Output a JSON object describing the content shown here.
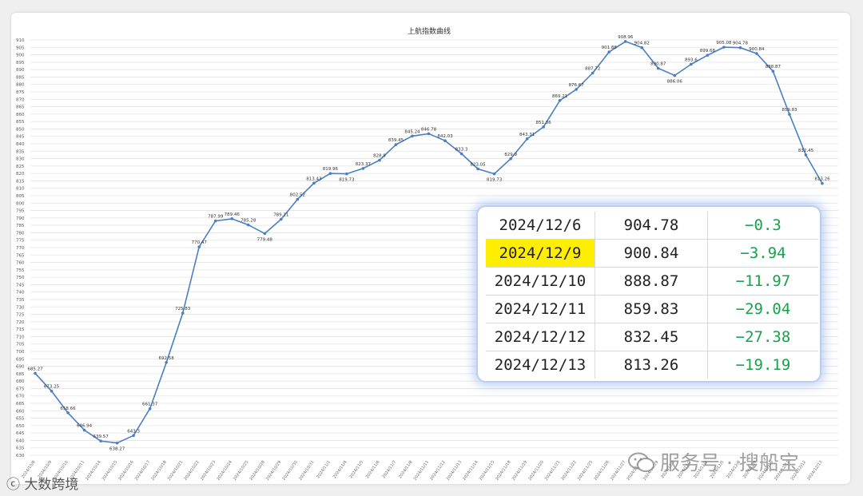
{
  "chart_data": {
    "type": "line",
    "title": "上航指数曲线",
    "ylim": [
      630,
      910
    ],
    "ytick_step": 5,
    "grid": true,
    "line_color": "#4a7fc1",
    "x": [
      "2024/10/8",
      "2024/10/9",
      "2024/10/10",
      "2024/10/11",
      "2024/10/14",
      "2024/10/15",
      "2024/10/16",
      "2024/10/17",
      "2024/10/18",
      "2024/10/21",
      "2024/10/22",
      "2024/10/23",
      "2024/10/24",
      "2024/10/25",
      "2024/10/28",
      "2024/10/29",
      "2024/10/30",
      "2024/10/31",
      "2024/11/1",
      "2024/11/4",
      "2024/11/5",
      "2024/11/6",
      "2024/11/7",
      "2024/11/8",
      "2024/11/11",
      "2024/11/12",
      "2024/11/13",
      "2024/11/14",
      "2024/11/15",
      "2024/11/18",
      "2024/11/19",
      "2024/11/20",
      "2024/11/21",
      "2024/11/22",
      "2024/11/25",
      "2024/11/26",
      "2024/11/27",
      "2024/11/28",
      "2024/11/29",
      "2024/12/2",
      "2024/12/3",
      "2024/12/4",
      "2024/12/5",
      "2024/12/6",
      "2024/12/9",
      "2024/12/10",
      "2024/12/11",
      "2024/12/12",
      "2024/12/13"
    ],
    "values": [
      685.27,
      673.25,
      658.66,
      646.94,
      639.57,
      638.27,
      643.3,
      661.37,
      692.58,
      725.83,
      770.47,
      787.99,
      789.46,
      785.28,
      779.48,
      789.11,
      802.52,
      813.43,
      819.96,
      819.73,
      823.37,
      828.9,
      839.45,
      845.24,
      846.78,
      842.03,
      833.3,
      823.05,
      819.73,
      829.9,
      843.31,
      851.36,
      869.21,
      876.67,
      887.72,
      901.88,
      908.96,
      904.82,
      890.87,
      886.06,
      893.6,
      899.68,
      905.08,
      904.78,
      900.84,
      888.87,
      859.83,
      832.45,
      813.26
    ],
    "labels": [
      "685.27",
      "673.25",
      "658.66",
      "646.94",
      "639.57",
      "638.27",
      "643.3",
      "661.37",
      "692.58",
      "725.83",
      "770.47",
      "787.99",
      "789.46",
      "785.28",
      "779.48",
      "789.11",
      "802.52",
      "813.43",
      "819.96",
      "819.73",
      "823.37",
      "828.9",
      "839.45",
      "845.24",
      "846.78",
      "842.03",
      "833.3",
      "823.05",
      "819.73",
      "829.9",
      "843.31",
      "851.36",
      "869.21",
      "876.67",
      "887.72",
      "901.88",
      "908.96",
      "904.82",
      "890.87",
      "886.06",
      "893.6",
      "899.68",
      "905.08",
      "904.78",
      "900.84",
      "888.87",
      "859.83",
      "832.45",
      "813.26"
    ]
  },
  "table": {
    "rows": [
      {
        "date": "2024/12/6",
        "value": "904.78",
        "change": "−0.3",
        "highlight": false
      },
      {
        "date": "2024/12/9",
        "value": "900.84",
        "change": "−3.94",
        "highlight": true
      },
      {
        "date": "2024/12/10",
        "value": "888.87",
        "change": "−11.97",
        "highlight": false
      },
      {
        "date": "2024/12/11",
        "value": "859.83",
        "change": "−29.04",
        "highlight": false
      },
      {
        "date": "2024/12/12",
        "value": "832.45",
        "change": "−27.38",
        "highlight": false
      },
      {
        "date": "2024/12/13",
        "value": "813.26",
        "change": "−19.19",
        "highlight": false
      }
    ],
    "highlight_color": "#ffee00",
    "change_color": "#16a34a"
  },
  "watermark_right": "服务号 · 搜船宝",
  "watermark_left": "大数跨境"
}
